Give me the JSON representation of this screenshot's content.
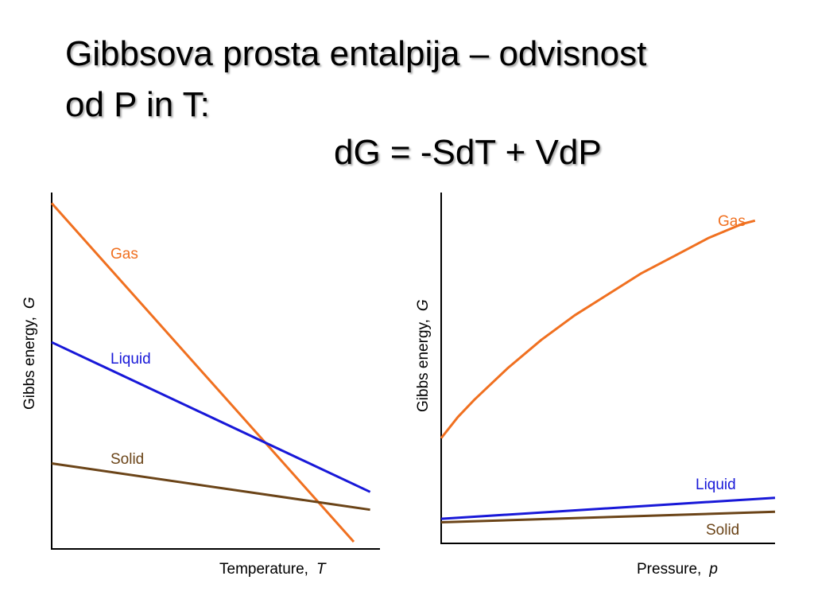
{
  "slide": {
    "title_line1": "Gibbsova prosta entalpija – odvisnost",
    "title_line2": "od P in T:",
    "equation": "dG = -SdT + VdP"
  },
  "colors": {
    "gas": "#f07020",
    "liquid": "#1818d8",
    "solid": "#6b4418"
  },
  "chart_data": [
    {
      "type": "line",
      "xlabel": "Temperature,",
      "xlabel_symbol": "T",
      "ylabel": "Gibbs energy,",
      "ylabel_symbol": "G",
      "xlim": [
        0,
        10
      ],
      "ylim": [
        0,
        10
      ],
      "grid": false,
      "series": [
        {
          "name": "Gas",
          "x": [
            0,
            9.2
          ],
          "y": [
            9.7,
            0.2
          ]
        },
        {
          "name": "Liquid",
          "x": [
            0,
            9.7
          ],
          "y": [
            5.8,
            1.6
          ]
        },
        {
          "name": "Solid",
          "x": [
            0,
            9.7
          ],
          "y": [
            2.4,
            1.1
          ]
        }
      ]
    },
    {
      "type": "line",
      "xlabel": "Pressure,",
      "xlabel_symbol": "p",
      "ylabel": "Gibbs energy,",
      "ylabel_symbol": "G",
      "xlim": [
        0,
        10
      ],
      "ylim": [
        0,
        10
      ],
      "grid": false,
      "series": [
        {
          "name": "Gas",
          "x": [
            0,
            0.5,
            1,
            2,
            3,
            4,
            5,
            6,
            7,
            8,
            9,
            9.4
          ],
          "y": [
            3.0,
            3.6,
            4.1,
            5.0,
            5.8,
            6.5,
            7.1,
            7.7,
            8.2,
            8.7,
            9.1,
            9.2
          ]
        },
        {
          "name": "Liquid",
          "x": [
            0,
            10
          ],
          "y": [
            0.7,
            1.3
          ]
        },
        {
          "name": "Solid",
          "x": [
            0,
            10
          ],
          "y": [
            0.6,
            0.9
          ]
        }
      ]
    }
  ]
}
